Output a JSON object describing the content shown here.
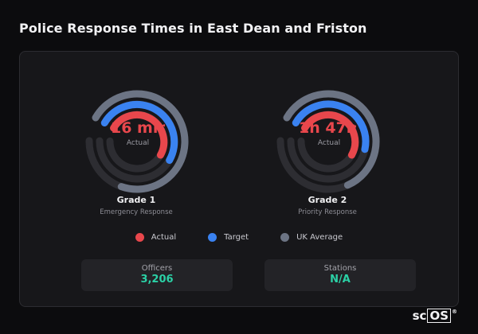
{
  "page": {
    "title": "Police Response Times in East Dean and Friston"
  },
  "colors": {
    "actual": "#e8474c",
    "target": "#3a82f0",
    "uk_average": "#6c7484",
    "track": "#2d2d32",
    "accent_value": "#2bd1a6"
  },
  "gauges": [
    {
      "value_label": "16 min",
      "caption": "Actual",
      "grade": "Grade 1",
      "subtitle": "Emergency Response",
      "rings": {
        "uk_average": 0.72,
        "target": 0.5,
        "actual": 0.5
      }
    },
    {
      "value_label": "1h 47m",
      "caption": "Actual",
      "grade": "Grade 2",
      "subtitle": "Priority Response",
      "rings": {
        "uk_average": 0.6,
        "target": 0.45,
        "actual": 0.5
      }
    }
  ],
  "legend": [
    {
      "label": "Actual",
      "color": "#e8474c"
    },
    {
      "label": "Target",
      "color": "#3a82f0"
    },
    {
      "label": "UK Average",
      "color": "#6c7484"
    }
  ],
  "stats": [
    {
      "label": "Officers",
      "value": "3,206"
    },
    {
      "label": "Stations",
      "value": "N/A"
    }
  ],
  "brand": {
    "prefix": "sc",
    "boxed": "OS",
    "mark": "®"
  }
}
